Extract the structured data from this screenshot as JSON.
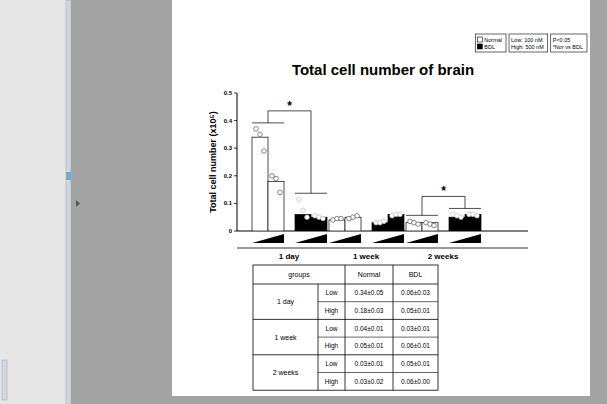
{
  "chart_data": {
    "type": "bar",
    "title": "Total cell number of brain",
    "y_label": "Total cell number (x10⁵)",
    "categories": [
      "1 day",
      "1 week",
      "2 weeks"
    ],
    "dose_legend": [
      "Low: 100 nM",
      "High: 500 nM"
    ],
    "significance_legend": [
      "P<0.05",
      "*Nor vs BDL"
    ],
    "legend": "top-right",
    "grid": false,
    "ylim": [
      0,
      0.5
    ],
    "yticks": [
      0,
      0.1,
      0.2,
      0.3,
      0.4,
      0.5
    ],
    "series": [
      {
        "name": "Normal",
        "color": "#ffffff",
        "values": [
          [
            0.34,
            0.18
          ],
          [
            0.04,
            0.05
          ],
          [
            0.03,
            0.03
          ]
        ],
        "points": [
          [
            [
              0.37,
              0.35,
              0.29
            ],
            [
              0.2,
              0.19,
              0.14
            ]
          ],
          [
            [
              0.04,
              0.045,
              0.045
            ],
            [
              0.045,
              0.05,
              0.055
            ]
          ],
          [
            [
              0.035,
              0.03,
              0.025
            ],
            [
              0.03,
              0.025,
              0.02
            ]
          ]
        ]
      },
      {
        "name": "BDL",
        "color": "#000000",
        "values": [
          [
            0.06,
            0.05
          ],
          [
            0.03,
            0.06
          ],
          [
            0.05,
            0.06
          ]
        ],
        "points": [
          [
            [
              0.115,
              0.075,
              0.05
            ],
            [
              0.055,
              0.05,
              0.045
            ]
          ],
          [
            [
              0.03,
              0.03,
              0.035
            ],
            [
              0.055,
              0.06,
              0.06
            ]
          ],
          [
            [
              0.06,
              0.055,
              0.05
            ],
            [
              0.06,
              0.06,
              0.055
            ]
          ]
        ]
      }
    ],
    "annotations": [
      {
        "text": "*",
        "category": 0
      },
      {
        "text": "*",
        "category": 2
      }
    ],
    "table": {
      "header": [
        "groups",
        "Normal",
        "BDL"
      ],
      "rows": [
        {
          "group": "1 day",
          "doses": [
            [
              "Low",
              "0.34±0.05",
              "0.06±0.03"
            ],
            [
              "High",
              "0.18±0.03",
              "0.05±0.01"
            ]
          ]
        },
        {
          "group": "1 week",
          "doses": [
            [
              "Low",
              "0.04±0.01",
              "0.03±0.01"
            ],
            [
              "High",
              "0.05±0.01",
              "0.06±0.01"
            ]
          ]
        },
        {
          "group": "2 weeks",
          "doses": [
            [
              "Low",
              "0.03±0.01",
              "0.05±0.01"
            ],
            [
              "High",
              "0.03±0.02",
              "0.06±0.00"
            ]
          ]
        }
      ]
    }
  }
}
